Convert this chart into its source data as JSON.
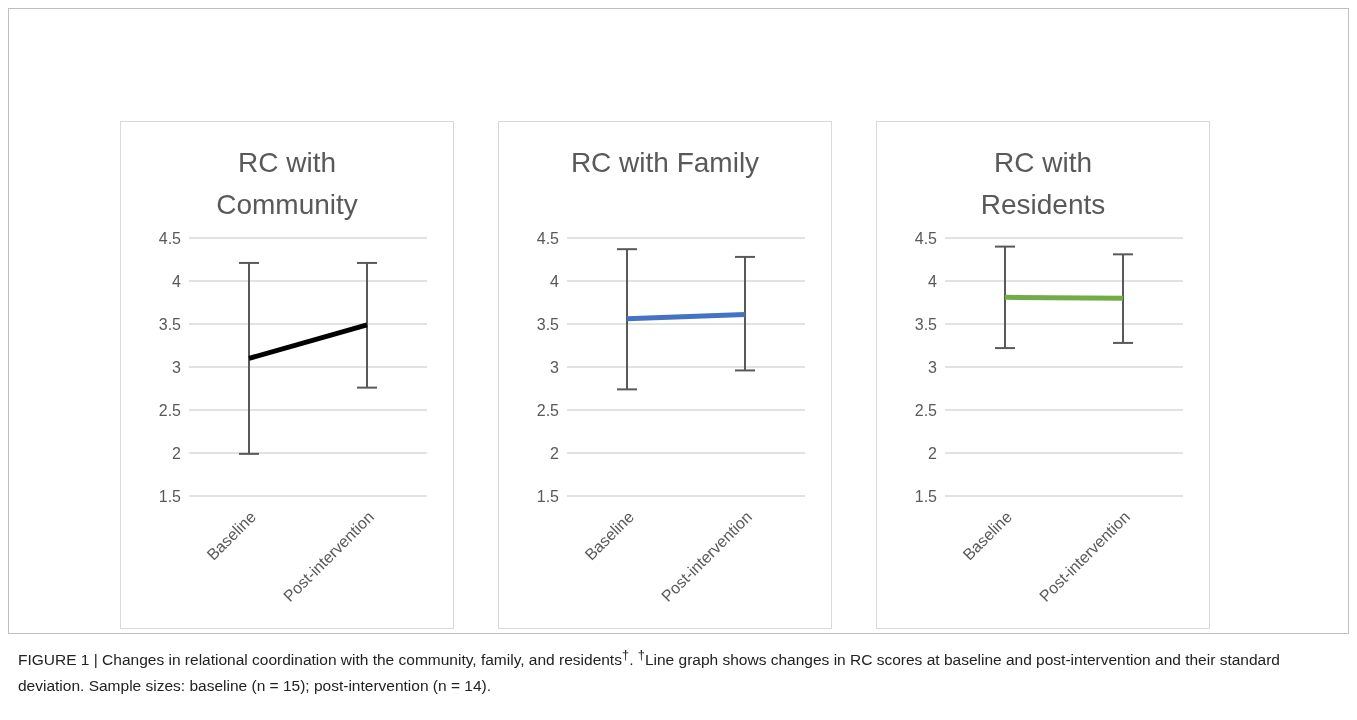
{
  "chart_data": [
    {
      "type": "line",
      "title": "RC with Community",
      "categories": [
        "Baseline",
        "Post-intervention"
      ],
      "series": [
        {
          "color": "#000000",
          "values": [
            3.1,
            3.49
          ],
          "errors": [
            [
              1.99,
              4.21
            ],
            [
              2.76,
              4.21
            ]
          ]
        }
      ],
      "ylim": [
        1.5,
        4.5
      ],
      "yticks": [
        1.5,
        2,
        2.5,
        3,
        3.5,
        4,
        4.5
      ],
      "grid": "y",
      "marker": "none",
      "line_style": "solid",
      "annotations": [
        "FIGURE 1 | Changes in relational coordination with the community, family, and residents$^{†}$. $^{†}$Line graph shows changes in RC scores at baseline and post-intervention and their standard deviation. Sample sizes: baseline (n = 15); post-intervention (n = 14)."
      ]
    },
    {
      "type": "line",
      "title": "RC with Family",
      "categories": [
        "Baseline",
        "Post-intervention"
      ],
      "series": [
        {
          "color": "#4472c4",
          "values": [
            3.56,
            3.61
          ],
          "errors": [
            [
              2.74,
              4.37
            ],
            [
              2.96,
              4.28
            ]
          ]
        }
      ],
      "ylim": [
        1.5,
        4.5
      ],
      "yticks": [
        1.5,
        2,
        2.5,
        3,
        3.5,
        4,
        4.5
      ],
      "grid": "y",
      "marker": "none",
      "line_style": "solid"
    },
    {
      "type": "line",
      "title": "RC with Residents",
      "categories": [
        "Baseline",
        "Post-intervention"
      ],
      "series": [
        {
          "color": "#70ad47",
          "values": [
            3.81,
            3.8
          ],
          "errors": [
            [
              3.22,
              4.4
            ],
            [
              3.28,
              4.31
            ]
          ]
        }
      ],
      "ylim": [
        1.5,
        4.5
      ],
      "yticks": [
        1.5,
        2,
        2.5,
        3,
        3.5,
        4,
        4.5
      ],
      "grid": "y",
      "marker": "none",
      "line_style": "solid"
    }
  ]
}
